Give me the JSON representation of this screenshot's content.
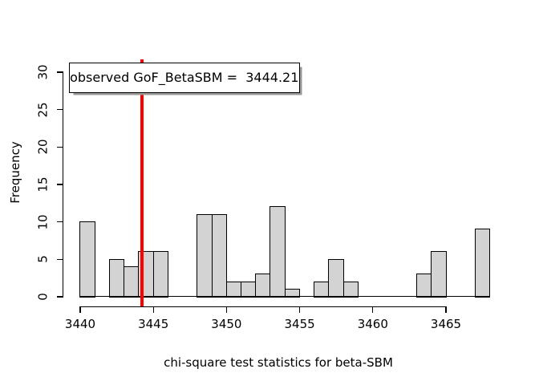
{
  "figure": {
    "background": "#FFFFFF"
  },
  "chart_data": {
    "type": "bar",
    "subtype": "histogram",
    "title": "",
    "xlabel": "chi-square test statistics for beta-SBM",
    "ylabel": "Frequency",
    "bin_start": 3440,
    "bin_width": 1,
    "counts": [
      10,
      0,
      5,
      4,
      6,
      6,
      0,
      0,
      11,
      11,
      2,
      2,
      3,
      12,
      1,
      0,
      2,
      5,
      2,
      0,
      0,
      0,
      0,
      3,
      6,
      0,
      0,
      9
    ],
    "x_ticks": [
      3440,
      3445,
      3450,
      3455,
      3460,
      3465
    ],
    "y_ticks": [
      0,
      5,
      10,
      15,
      20,
      25,
      30
    ],
    "xlim": [
      3440,
      3468
    ],
    "ylim": [
      0,
      30
    ],
    "grid": false,
    "legend_position": "top-left",
    "legend_label": "observed GoF_BetaSBM =  3444.21",
    "observed_line": {
      "value": 3444.21,
      "color": "#FF0000"
    },
    "bar_fill": "#D3D3D3",
    "bar_border": "#000000",
    "axis_color": "#000000"
  }
}
